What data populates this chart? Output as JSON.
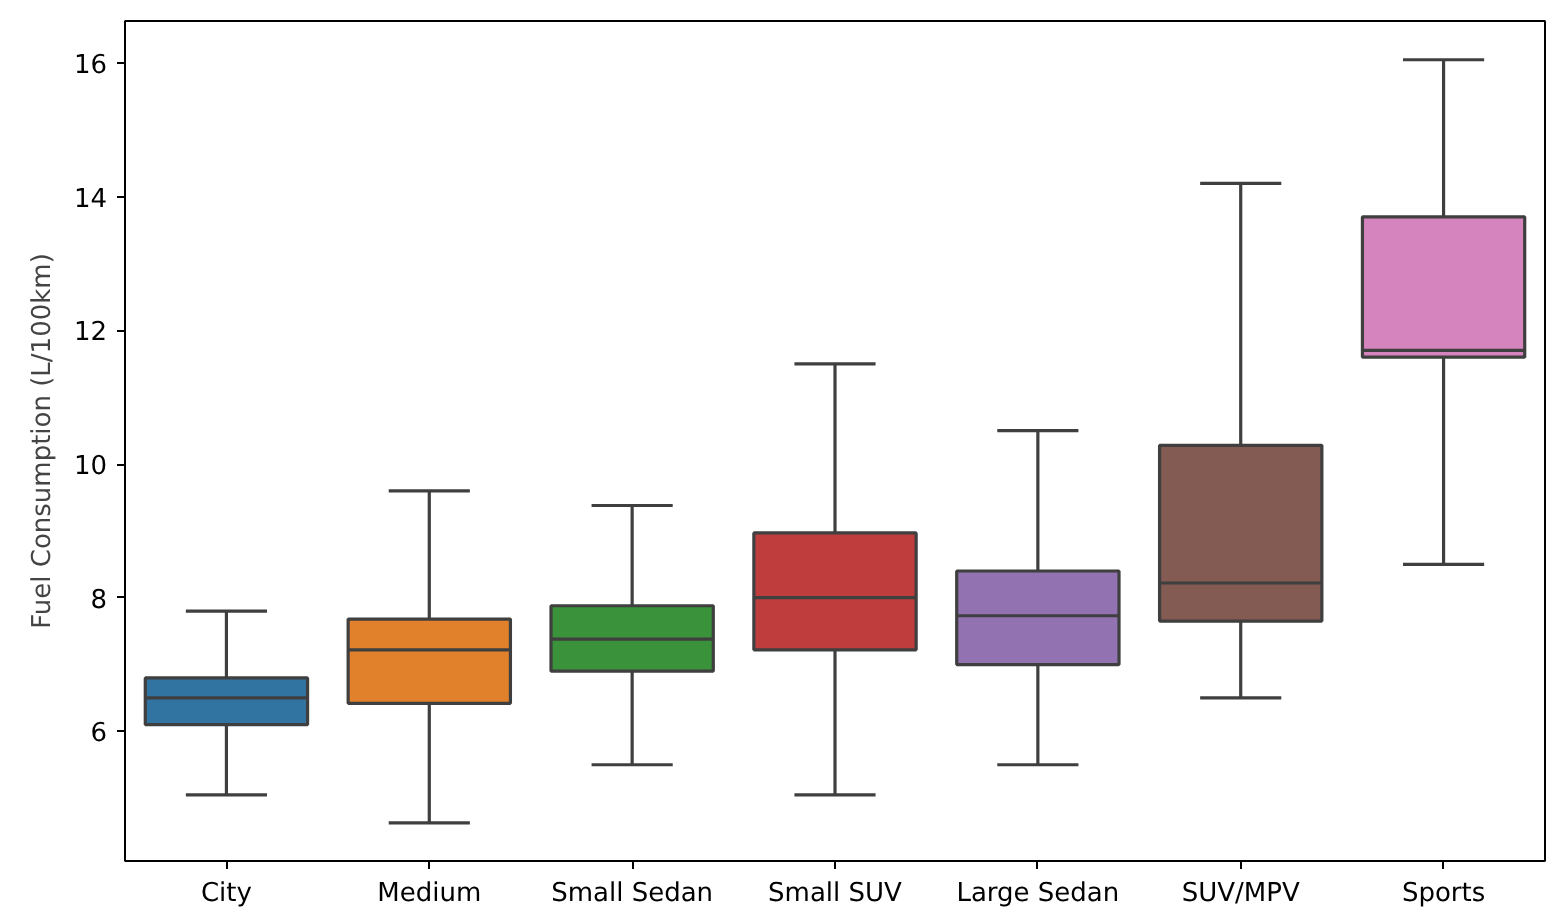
{
  "chart_data": {
    "type": "box",
    "ylabel": "Fuel Consumption (L/100km)",
    "categories": [
      "City",
      "Medium",
      "Small Sedan",
      "Small SUV",
      "Large Sedan",
      "SUV/MPV",
      "Sports"
    ],
    "colors": [
      "#3274a1",
      "#e1812c",
      "#3a923a",
      "#c03d3e",
      "#9372b2",
      "#845b53",
      "#d684bd"
    ],
    "boxes": [
      {
        "low": 5.05,
        "q1": 6.1,
        "median": 6.5,
        "q3": 6.8,
        "high": 7.8
      },
      {
        "low": 4.63,
        "q1": 6.42,
        "median": 7.22,
        "q3": 7.68,
        "high": 9.6
      },
      {
        "low": 5.5,
        "q1": 6.9,
        "median": 7.38,
        "q3": 7.88,
        "high": 9.38
      },
      {
        "low": 5.05,
        "q1": 7.22,
        "median": 8.0,
        "q3": 8.97,
        "high": 11.5
      },
      {
        "low": 5.5,
        "q1": 7.0,
        "median": 7.73,
        "q3": 8.4,
        "high": 10.5
      },
      {
        "low": 6.5,
        "q1": 7.65,
        "median": 8.22,
        "q3": 10.28,
        "high": 14.2
      },
      {
        "low": 8.5,
        "q1": 11.6,
        "median": 11.7,
        "q3": 13.7,
        "high": 16.05
      }
    ],
    "ylim": [
      4.06,
      16.63
    ],
    "yticks": [
      6,
      8,
      10,
      12,
      14,
      16
    ],
    "grid": false
  }
}
